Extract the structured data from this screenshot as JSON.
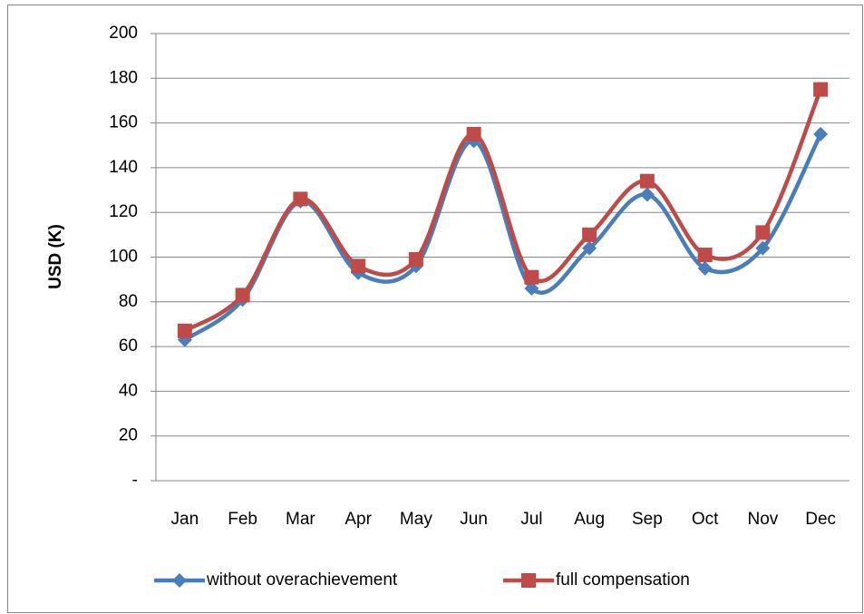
{
  "chart_data": {
    "type": "line",
    "y_label": "USD (K)",
    "categories": [
      "Jan",
      "Feb",
      "Mar",
      "Apr",
      "May",
      "Jun",
      "Jul",
      "Aug",
      "Sep",
      "Oct",
      "Nov",
      "Dec"
    ],
    "series": [
      {
        "name": "without overachievement",
        "color": "#4a7ebb",
        "marker": "diamond",
        "values": [
          63,
          81,
          125,
          93,
          96,
          152,
          86,
          104,
          128,
          95,
          104,
          155
        ]
      },
      {
        "name": "full compensation",
        "color": "#be4b48",
        "marker": "square",
        "values": [
          67,
          83,
          126,
          96,
          99,
          155,
          91,
          110,
          134,
          101,
          111,
          175
        ]
      }
    ],
    "ylim": [
      0,
      200
    ],
    "yticks": [
      {
        "value": 0,
        "label": "-"
      },
      20,
      40,
      60,
      80,
      100,
      120,
      140,
      160,
      180,
      200
    ],
    "grid": true,
    "smooth": true,
    "legend": "bottom"
  }
}
